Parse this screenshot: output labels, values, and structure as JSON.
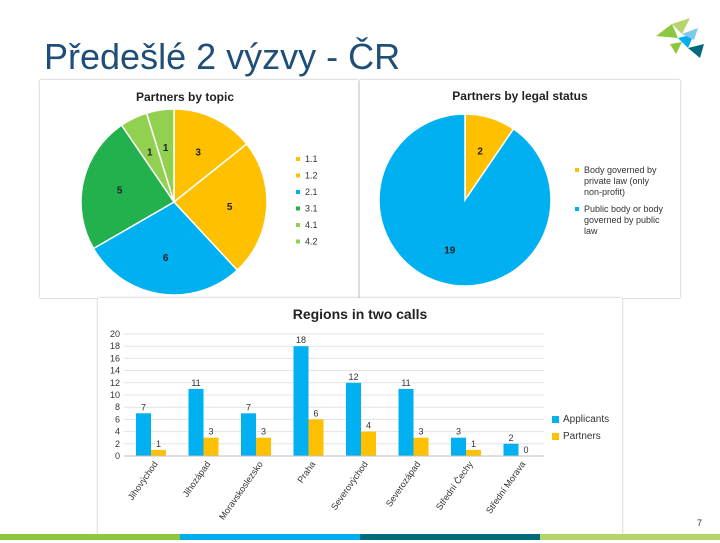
{
  "slide": {
    "title": "Předešlé 2 výzvy - ČR",
    "page_number": "7"
  },
  "colors": {
    "title": "#1f4e79",
    "yellow": "#ffc000",
    "blue": "#00b0f0",
    "dark_green": "#22b14c",
    "light_green": "#92d050",
    "logo_green": "#8dc63f",
    "logo_blue": "#00aeef",
    "logo_teal": "#006b7a"
  },
  "chart_data": [
    {
      "id": "topic",
      "type": "pie",
      "title": "Partners by topic",
      "legend": "right",
      "slices": [
        {
          "label": "1.1",
          "value": 3,
          "color": "#ffc000"
        },
        {
          "label": "1.2",
          "value": 5,
          "color": "#ffc000"
        },
        {
          "label": "2.1",
          "value": 6,
          "color": "#00b0f0"
        },
        {
          "label": "3.1",
          "value": 5,
          "color": "#22b14c"
        },
        {
          "label": "4.1",
          "value": 1,
          "color": "#92d050"
        },
        {
          "label": "4.2",
          "value": 1,
          "color": "#92d050"
        }
      ]
    },
    {
      "id": "legal",
      "type": "pie",
      "title": "Partners by legal status",
      "legend": "right",
      "slices": [
        {
          "label": "Body governed by private law (only non-profit)",
          "value": 2,
          "color": "#ffc000"
        },
        {
          "label": "Public body or body governed by public law",
          "value": 19,
          "color": "#00b0f0"
        }
      ]
    },
    {
      "id": "regions",
      "type": "bar",
      "title": "Regions in two calls",
      "legend": "right",
      "ylim": [
        0,
        20
      ],
      "yticks": [
        0,
        2,
        4,
        6,
        8,
        10,
        12,
        14,
        16,
        18,
        20
      ],
      "categories": [
        "Jihovýchod",
        "Jihozápad",
        "Moravskoslezsko",
        "Praha",
        "Severovýchod",
        "Severozápad",
        "Střední Čechy",
        "Střední Morava"
      ],
      "series": [
        {
          "name": "Applicants",
          "color": "#00b0f0",
          "values": [
            7,
            11,
            7,
            18,
            12,
            11,
            3,
            2
          ]
        },
        {
          "name": "Partners",
          "color": "#ffc000",
          "values": [
            1,
            3,
            3,
            6,
            4,
            3,
            1,
            0
          ]
        }
      ]
    }
  ]
}
